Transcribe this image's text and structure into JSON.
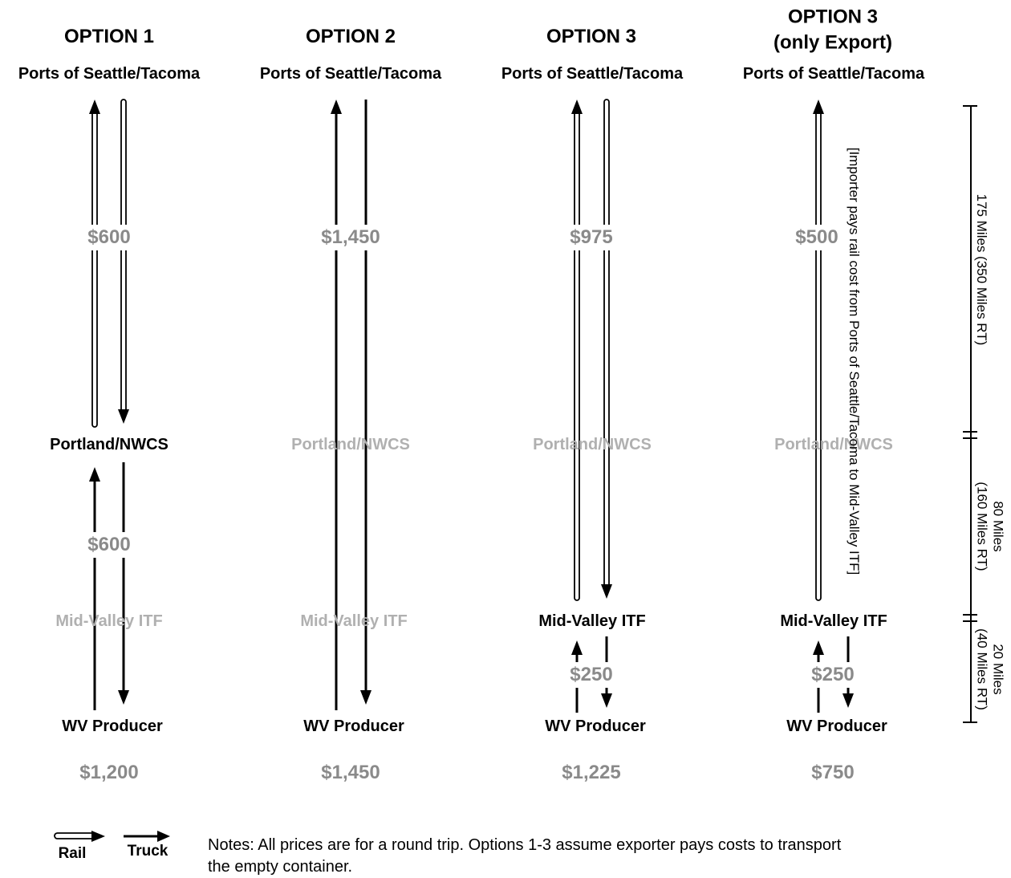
{
  "options": [
    {
      "heading": [
        "OPTION 1"
      ],
      "top": "Ports of Seattle/Tacoma",
      "mid": "Portland/NWCS",
      "itf": "Mid-Valley ITF",
      "bottom": "WV Producer",
      "price_upper": "$600",
      "price_lower": "$600",
      "total": "$1,200"
    },
    {
      "heading": [
        "OPTION 2"
      ],
      "top": "Ports of Seattle/Tacoma",
      "mid": "Portland/NWCS",
      "itf": "Mid-Valley ITF",
      "bottom": "WV Producer",
      "price_upper": "$1,450",
      "total": "$1,450"
    },
    {
      "heading": [
        "OPTION 3"
      ],
      "top": "Ports of Seattle/Tacoma",
      "mid": "Portland/NWCS",
      "itf": "Mid-Valley ITF",
      "bottom": "WV Producer",
      "price_upper": "$975",
      "price_lower": "$250",
      "total": "$1,225"
    },
    {
      "heading": [
        "OPTION 3",
        "(only Export)"
      ],
      "top": "Ports of Seattle/Tacoma",
      "mid": "Portland/NWCS",
      "itf": "Mid-Valley ITF",
      "bottom": "WV Producer",
      "price_upper": "$500",
      "price_lower": "$250",
      "total": "$750"
    }
  ],
  "importer_note": "[Importer pays rail cost from Ports of Seattle/Tacoma to Mid-Valley ITF]",
  "scale": [
    {
      "lines": [
        "175 Miles (350 Miles RT)"
      ]
    },
    {
      "lines": [
        "80 Miles",
        "(160 Miles RT)"
      ]
    },
    {
      "lines": [
        "20 Miles",
        "(40 Miles RT)"
      ]
    }
  ],
  "legend": {
    "rail": "Rail",
    "truck": "Truck"
  },
  "notes": "Notes: All prices are for a round trip. Options 1-3 assume exporter pays costs to transport",
  "notes_cont": "the empty container."
}
